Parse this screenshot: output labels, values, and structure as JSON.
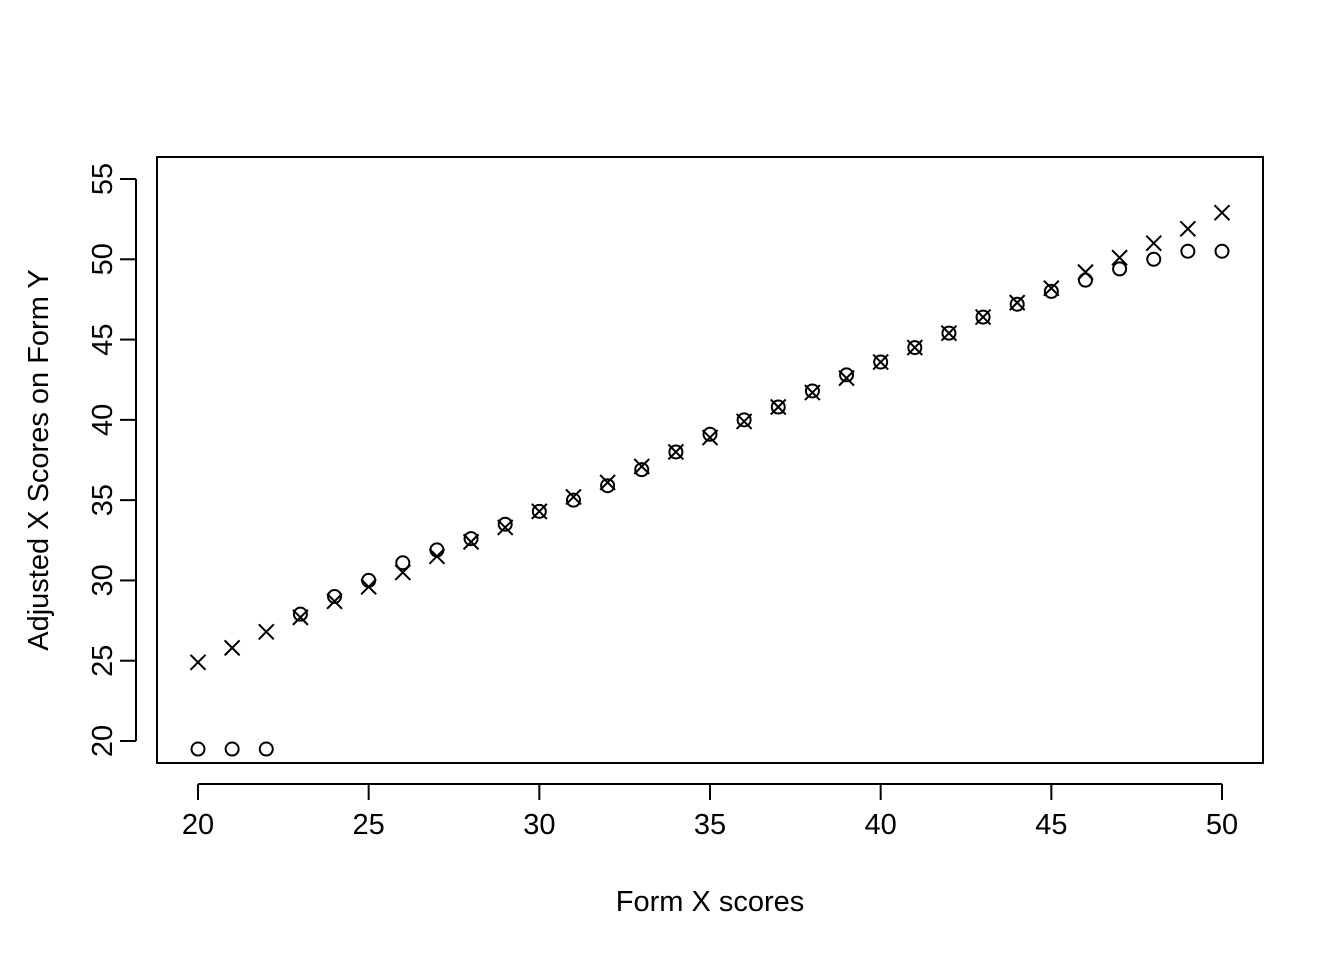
{
  "chart_data": {
    "type": "scatter",
    "title": "",
    "xlabel": "Form X scores",
    "ylabel": "Adjusted X Scores on Form Y",
    "xlim": [
      20,
      50
    ],
    "ylim": [
      20,
      55
    ],
    "x_ticks": [
      20,
      25,
      30,
      35,
      40,
      45,
      50
    ],
    "y_ticks": [
      20,
      25,
      30,
      35,
      40,
      45,
      50,
      55
    ],
    "grid": false,
    "legend": "none",
    "series": [
      {
        "marker": "circle",
        "color": "#000000",
        "x": [
          20,
          21,
          22,
          23,
          24,
          25,
          26,
          27,
          28,
          29,
          30,
          31,
          32,
          33,
          34,
          35,
          36,
          37,
          38,
          39,
          40,
          41,
          42,
          43,
          44,
          45,
          46,
          47,
          48,
          49,
          50
        ],
        "y": [
          19.5,
          19.5,
          19.5,
          27.9,
          29.0,
          30.0,
          31.1,
          31.9,
          32.6,
          33.5,
          34.3,
          35.0,
          35.9,
          36.9,
          38.0,
          39.1,
          40.0,
          40.8,
          41.8,
          42.8,
          43.6,
          44.5,
          45.4,
          46.4,
          47.2,
          48.0,
          48.7,
          49.4,
          50.0,
          50.5,
          50.5
        ]
      },
      {
        "marker": "cross",
        "color": "#000000",
        "x": [
          20,
          21,
          22,
          23,
          24,
          25,
          26,
          27,
          28,
          29,
          30,
          31,
          32,
          33,
          34,
          35,
          36,
          37,
          38,
          39,
          40,
          41,
          42,
          43,
          44,
          45,
          46,
          47,
          48,
          49,
          50
        ],
        "y": [
          24.9,
          25.8,
          26.8,
          27.7,
          28.7,
          29.6,
          30.5,
          31.5,
          32.4,
          33.3,
          34.3,
          35.2,
          36.1,
          37.1,
          38.0,
          38.9,
          39.9,
          40.8,
          41.7,
          42.6,
          43.6,
          44.5,
          45.4,
          46.4,
          47.3,
          48.2,
          49.2,
          50.1,
          51.0,
          51.9,
          52.9
        ]
      }
    ]
  }
}
